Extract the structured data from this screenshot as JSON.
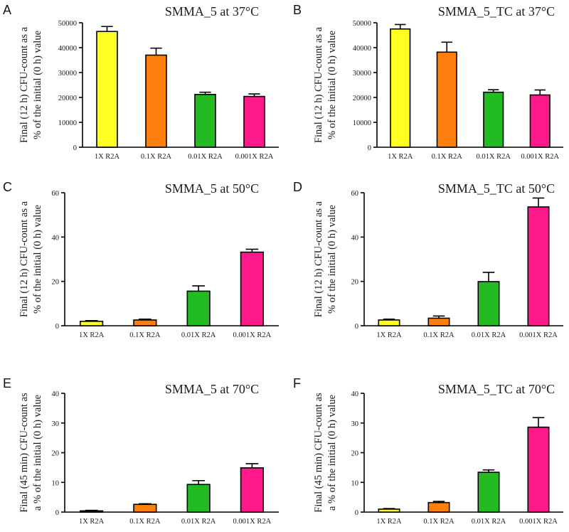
{
  "colors": [
    "#ffff22",
    "#ff7f0e",
    "#22bb22",
    "#ff1a8c"
  ],
  "chart_data": [
    {
      "type": "bar",
      "panel": "A",
      "title": "SMMA_5 at 37°C",
      "ylabel": [
        "Final (12 h) CFU-count as a",
        "% of the initial (0 h) value"
      ],
      "categories": [
        "1X R2A",
        "0.1X R2A",
        "0.01X R2A",
        "0.001X R2A"
      ],
      "values": [
        46500,
        37000,
        21200,
        20400
      ],
      "errors": [
        2000,
        2800,
        900,
        1000
      ],
      "ylim": [
        0,
        50000
      ],
      "yticks": [
        0,
        10000,
        20000,
        30000,
        40000,
        50000
      ],
      "ytick_labels": [
        "0",
        "10000",
        "20000",
        "30000",
        "40000",
        "50000"
      ]
    },
    {
      "type": "bar",
      "panel": "B",
      "title": "SMMA_5_TC at 37°C",
      "ylabel": [
        "Final (12 h) CFU-count as a",
        "% of the initial (0 h) value"
      ],
      "categories": [
        "1X R2A",
        "0.1X R2A",
        "0.01X R2A",
        "0.001X R2A"
      ],
      "values": [
        47500,
        38200,
        22100,
        21000
      ],
      "errors": [
        1800,
        4000,
        1000,
        2000
      ],
      "ylim": [
        0,
        50000
      ],
      "yticks": [
        0,
        10000,
        20000,
        30000,
        40000,
        50000
      ],
      "ytick_labels": [
        "0",
        "10000",
        "20000",
        "30000",
        "40000",
        "50000"
      ]
    },
    {
      "type": "bar",
      "panel": "C",
      "title": "SMMA_5 at 50°C",
      "ylabel": [
        "Final (12 h) CFU-count as a",
        "% of the initial (0 h) value"
      ],
      "categories": [
        "1X R2A",
        "0.1X R2A",
        "0.01X R2A",
        "0.001X R2A"
      ],
      "values": [
        2,
        2.6,
        15.6,
        33.2
      ],
      "errors": [
        0.3,
        0.4,
        2.4,
        1.3
      ],
      "ylim": [
        0,
        60
      ],
      "yticks": [
        0,
        20,
        40,
        60
      ],
      "ytick_labels": [
        "0",
        "20",
        "40",
        "60"
      ]
    },
    {
      "type": "bar",
      "panel": "D",
      "title": "SMMA_5_TC at 50°C",
      "ylabel": [
        "Final (12 h) CFU-count as a",
        "% of the initial (0 h) value"
      ],
      "categories": [
        "1X R2A",
        "0.1X R2A",
        "0.01X R2A",
        "0.001X R2A"
      ],
      "values": [
        2.6,
        3.4,
        19.9,
        53.6
      ],
      "errors": [
        0.4,
        1.0,
        4.2,
        4.0
      ],
      "ylim": [
        0,
        60
      ],
      "yticks": [
        0,
        20,
        40,
        60
      ],
      "ytick_labels": [
        "0",
        "20",
        "40",
        "60"
      ]
    },
    {
      "type": "bar",
      "panel": "E",
      "title": "SMMA_5 at 70°C",
      "ylabel": [
        "Final (45 min) CFU-count as",
        "a % of the initial (0 h) value"
      ],
      "categories": [
        "1X R2A",
        "0.1X R2A",
        "0.01X R2A",
        "0.001X R2A"
      ],
      "values": [
        0.4,
        2.6,
        9.3,
        14.9
      ],
      "errors": [
        0.2,
        0.2,
        1.3,
        1.4
      ],
      "ylim": [
        0,
        40
      ],
      "yticks": [
        0,
        10,
        20,
        30,
        40
      ],
      "ytick_labels": [
        "0",
        "10",
        "20",
        "30",
        "40"
      ]
    },
    {
      "type": "bar",
      "panel": "F",
      "title": "SMMA_5_TC at 70°C",
      "ylabel": [
        "Final (45 min) CFU-count as",
        "a % of the initial (0 h) value"
      ],
      "categories": [
        "1X R2A",
        "0.1X R2A",
        "0.01X R2A",
        "0.001X R2A"
      ],
      "values": [
        1.0,
        3.2,
        13.4,
        28.6
      ],
      "errors": [
        0.2,
        0.4,
        0.8,
        3.2
      ],
      "ylim": [
        0,
        40
      ],
      "yticks": [
        0,
        10,
        20,
        30,
        40
      ],
      "ytick_labels": [
        "0",
        "10",
        "20",
        "30",
        "40"
      ]
    }
  ]
}
